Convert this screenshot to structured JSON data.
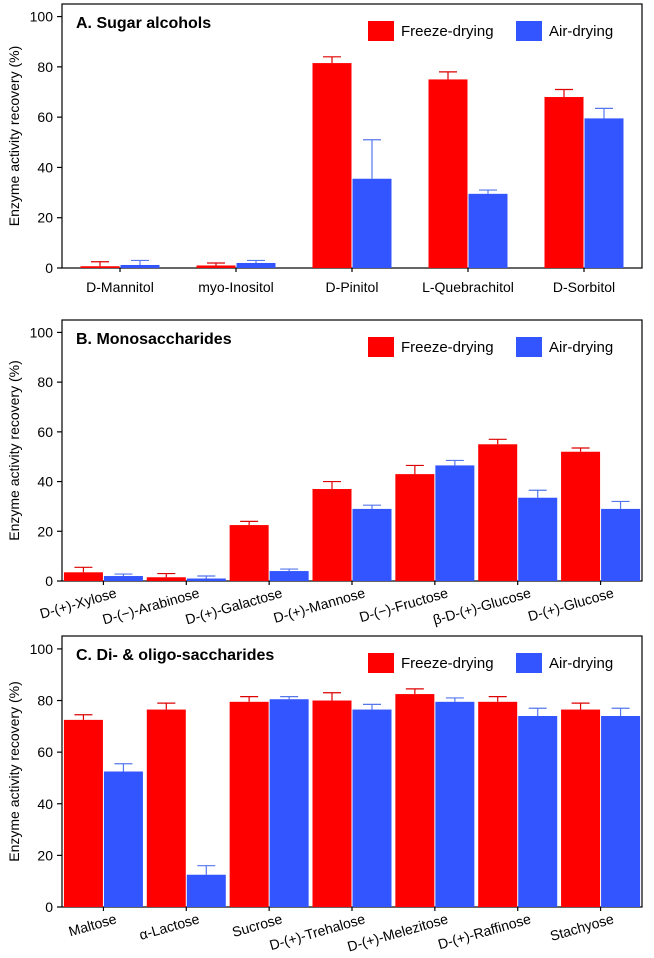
{
  "colors": {
    "freeze": "#ff0000",
    "air": "#3355ff",
    "freeze_err": "#dd0000",
    "air_err": "#5577ee"
  },
  "chart_data": [
    {
      "type": "bar",
      "title": "A.  Sugar alcohols",
      "ylabel": "Enzyme activity recovery (%)",
      "xlabel": "",
      "ylim": [
        0,
        105
      ],
      "yticks": [
        0,
        20,
        40,
        60,
        80,
        100
      ],
      "grid": false,
      "legend_position": "top-right",
      "rotated_labels": false,
      "categories": [
        "D-Mannitol",
        "myo-Inositol",
        "D-Pinitol",
        "L-Quebrachitol",
        "D-Sorbitol"
      ],
      "series": [
        {
          "name": "Freeze-drying",
          "values": [
            0.7,
            1.0,
            81.5,
            75.0,
            68.0
          ],
          "errors": [
            1.8,
            1.0,
            2.5,
            3.0,
            3.0
          ]
        },
        {
          "name": "Air-drying",
          "values": [
            1.2,
            2.0,
            35.5,
            29.5,
            59.5
          ],
          "errors": [
            1.8,
            1.0,
            15.5,
            1.5,
            4.0
          ]
        }
      ]
    },
    {
      "type": "bar",
      "title": "B.  Monosaccharides",
      "ylabel": "Enzyme activity recovery (%)",
      "xlabel": "",
      "ylim": [
        0,
        105
      ],
      "yticks": [
        0,
        20,
        40,
        60,
        80,
        100
      ],
      "grid": false,
      "legend_position": "top-right",
      "rotated_labels": true,
      "categories": [
        "D-(+)-Xylose",
        "D-(−)-Arabinose",
        "D-(+)-Galactose",
        "D-(+)-Mannose",
        "D-(−)-Fructose",
        "β-D-(+)-Glucose",
        "D-(+)-Glucose"
      ],
      "series": [
        {
          "name": "Freeze-drying",
          "values": [
            3.5,
            1.5,
            22.5,
            37.0,
            43.0,
            55.0,
            52.0
          ],
          "errors": [
            2.0,
            1.5,
            1.5,
            3.0,
            3.5,
            2.0,
            1.5
          ]
        },
        {
          "name": "Air-drying",
          "values": [
            2.0,
            1.0,
            4.0,
            29.0,
            46.5,
            33.5,
            29.0
          ],
          "errors": [
            0.8,
            1.0,
            0.8,
            1.5,
            2.0,
            3.0,
            3.0
          ]
        }
      ]
    },
    {
      "type": "bar",
      "title": "C.  Di- & oligo-saccharides",
      "ylabel": "Enzyme activity recovery (%)",
      "xlabel": "",
      "ylim": [
        0,
        105
      ],
      "yticks": [
        0,
        20,
        40,
        60,
        80,
        100
      ],
      "grid": false,
      "legend_position": "top-right",
      "rotated_labels": true,
      "categories": [
        "Maltose",
        "α-Lactose",
        "Sucrose",
        "D-(+)-Trehalose",
        "D-(+)-Melezitose",
        "D-(+)-Raffinose",
        "Stachyose"
      ],
      "series": [
        {
          "name": "Freeze-drying",
          "values": [
            72.5,
            76.5,
            79.5,
            80.0,
            82.5,
            79.5,
            76.5
          ],
          "errors": [
            2.0,
            2.5,
            2.0,
            3.0,
            2.0,
            2.0,
            2.5
          ]
        },
        {
          "name": "Air-drying",
          "values": [
            52.5,
            12.5,
            80.5,
            76.5,
            79.5,
            74.0,
            74.0
          ],
          "errors": [
            3.0,
            3.5,
            1.0,
            2.0,
            1.5,
            3.0,
            3.0
          ]
        }
      ]
    }
  ]
}
